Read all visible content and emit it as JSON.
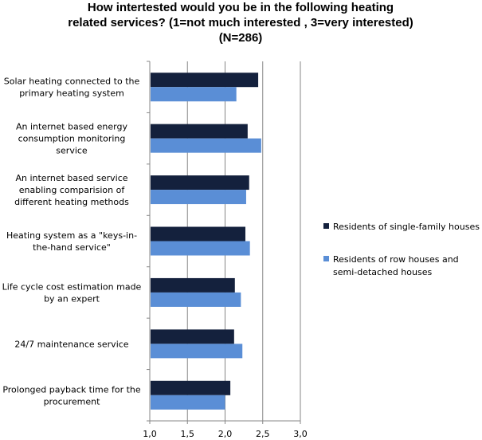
{
  "chart_data": {
    "type": "bar",
    "orientation": "horizontal",
    "title": [
      "How intertested would you be in the following heating",
      "related services? (1=not much interested , 3=very interested)",
      "(N=286)"
    ],
    "xlabel": "",
    "ylabel": "",
    "xlim": [
      1.0,
      3.0
    ],
    "ticks": [
      "1,0",
      "1,5",
      "2,0",
      "2,5",
      "3,0"
    ],
    "tick_values": [
      1.0,
      1.5,
      2.0,
      2.5,
      3.0
    ],
    "grid": true,
    "legend_position": "right",
    "categories": [
      [
        "Solar heating connected to the",
        "primary heating system"
      ],
      [
        "An internet based energy",
        "consumption monitoring",
        "service"
      ],
      [
        "An internet based service",
        "enabling comparision of",
        "different heating methods"
      ],
      [
        "Heating system as a \"keys-in-",
        "the-hand service\""
      ],
      [
        "Life cycle cost estimation made",
        "by an expert"
      ],
      [
        "24/7 maintenance service"
      ],
      [
        "Prolonged payback time for the",
        "procurement"
      ]
    ],
    "series": [
      {
        "name": [
          "Residents of single-family houses"
        ],
        "color": "#14213d",
        "values": [
          2.44,
          2.3,
          2.32,
          2.27,
          2.13,
          2.12,
          2.07
        ]
      },
      {
        "name": [
          "Residents of row houses and",
          "semi-detached houses"
        ],
        "color": "#5a8ed6",
        "values": [
          2.15,
          2.48,
          2.28,
          2.33,
          2.21,
          2.23,
          2.0
        ]
      }
    ]
  }
}
